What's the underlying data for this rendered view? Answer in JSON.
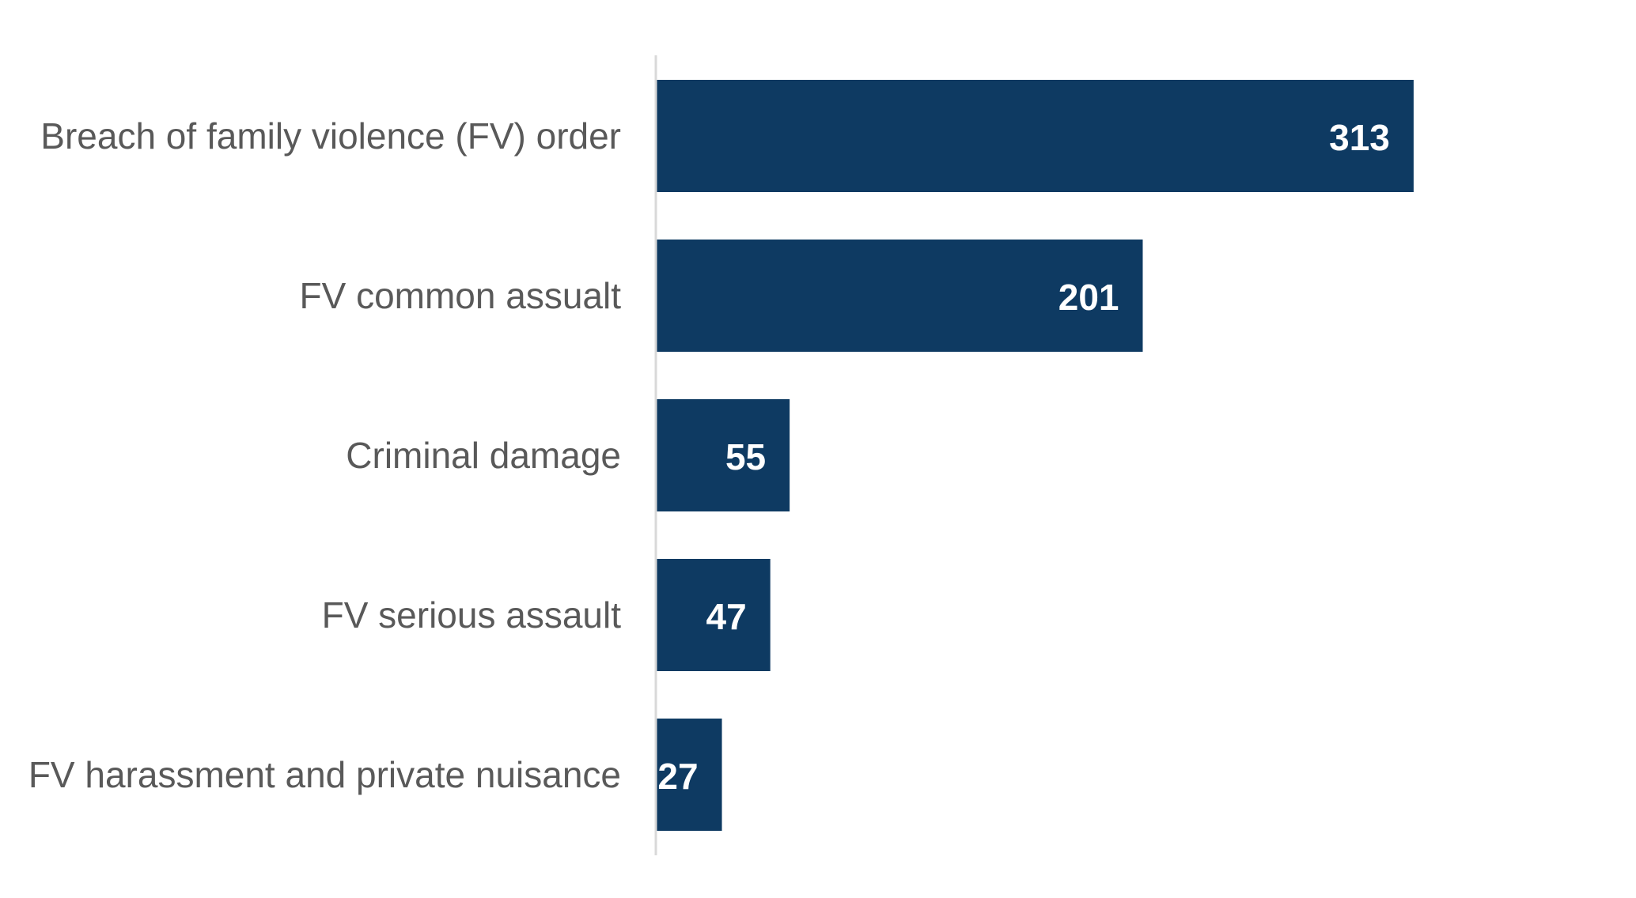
{
  "chart_data": {
    "type": "bar",
    "orientation": "horizontal",
    "title": "",
    "xlabel": "",
    "ylabel": "",
    "categories": [
      "Breach of family violence (FV) order",
      "FV common assualt",
      "Criminal damage",
      "FV serious assault",
      "FV harassment and private nuisance"
    ],
    "values": [
      313,
      201,
      55,
      47,
      27
    ],
    "xlim": [
      0,
      350
    ],
    "grid": false,
    "legend": "none",
    "data_labels": "inside-end",
    "colors": {
      "bar": "#0e3a62",
      "axis": "#d9d9d9",
      "category_text": "#595959",
      "value_text": "#ffffff"
    }
  }
}
